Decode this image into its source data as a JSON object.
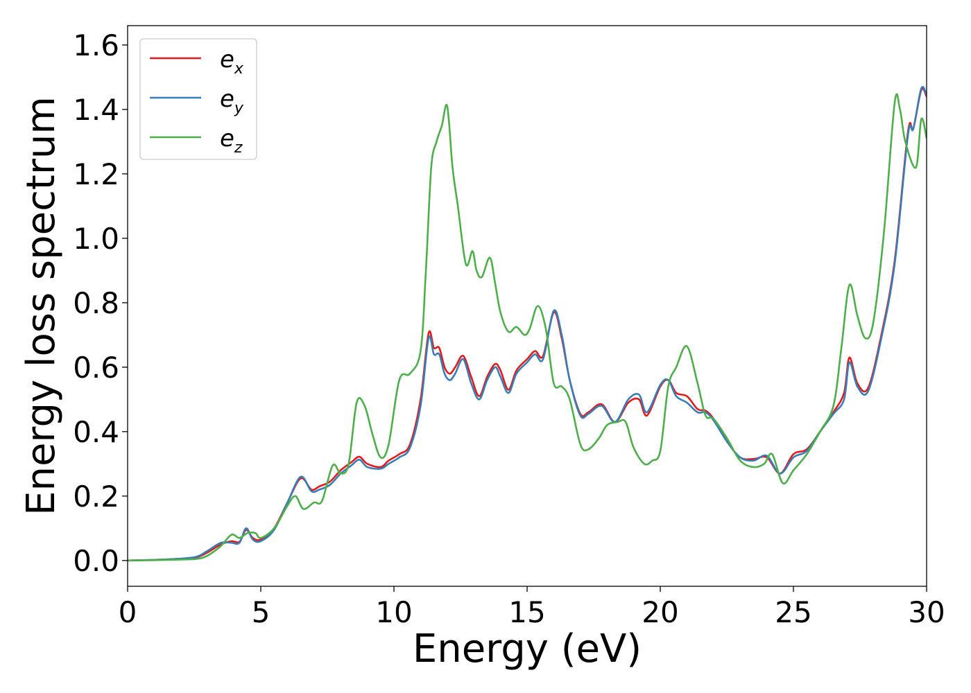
{
  "chart_data": {
    "type": "line",
    "xlabel": "Energy (eV)",
    "ylabel": "Energy loss spectrum",
    "xlim": [
      0,
      30
    ],
    "ylim": [
      -0.08,
      1.66
    ],
    "xticks": [
      0,
      5,
      10,
      15,
      20,
      25,
      30
    ],
    "xtick_labels": [
      "0",
      "5",
      "10",
      "15",
      "20",
      "25",
      "30"
    ],
    "yticks": [
      0.0,
      0.2,
      0.4,
      0.6,
      0.8,
      1.0,
      1.2,
      1.4,
      1.6
    ],
    "ytick_labels": [
      "0.0",
      "0.2",
      "0.4",
      "0.6",
      "0.8",
      "1.0",
      "1.2",
      "1.4",
      "1.6"
    ],
    "grid": false,
    "legend_position": "upper-left",
    "series": [
      {
        "name": "e_x",
        "name_base": "e",
        "name_sub": "x",
        "color": "#e41a1c",
        "x": [
          0,
          1,
          2,
          2.6,
          3,
          3.5,
          3.9,
          4.2,
          4.45,
          4.7,
          5.0,
          5.5,
          6.0,
          6.5,
          6.9,
          7.2,
          7.6,
          8.0,
          8.4,
          8.7,
          9.0,
          9.5,
          9.8,
          10.2,
          10.6,
          11.0,
          11.3,
          11.5,
          11.7,
          11.9,
          12.1,
          12.3,
          12.6,
          12.9,
          13.2,
          13.5,
          13.8,
          14.0,
          14.3,
          14.6,
          15.0,
          15.3,
          15.6,
          16.0,
          16.3,
          16.6,
          17.0,
          17.3,
          17.8,
          18.3,
          18.8,
          19.2,
          19.5,
          20.0,
          20.3,
          20.6,
          21.0,
          21.4,
          21.7,
          22.0,
          22.5,
          23.0,
          23.5,
          24.0,
          24.5,
          25.0,
          25.5,
          26.0,
          26.5,
          26.9,
          27.1,
          27.4,
          27.8,
          28.3,
          28.8,
          29.3,
          29.5,
          29.8,
          30.0
        ],
        "y": [
          0,
          0.002,
          0.005,
          0.01,
          0.025,
          0.05,
          0.06,
          0.058,
          0.095,
          0.07,
          0.065,
          0.1,
          0.18,
          0.255,
          0.22,
          0.23,
          0.245,
          0.28,
          0.305,
          0.322,
          0.3,
          0.29,
          0.31,
          0.33,
          0.36,
          0.5,
          0.705,
          0.66,
          0.66,
          0.6,
          0.58,
          0.6,
          0.635,
          0.57,
          0.51,
          0.57,
          0.61,
          0.59,
          0.53,
          0.59,
          0.625,
          0.65,
          0.635,
          0.77,
          0.69,
          0.56,
          0.455,
          0.46,
          0.485,
          0.43,
          0.49,
          0.5,
          0.45,
          0.54,
          0.56,
          0.52,
          0.51,
          0.47,
          0.465,
          0.44,
          0.37,
          0.32,
          0.315,
          0.32,
          0.27,
          0.33,
          0.345,
          0.4,
          0.46,
          0.52,
          0.63,
          0.55,
          0.535,
          0.7,
          0.93,
          1.33,
          1.34,
          1.46,
          1.44
        ]
      },
      {
        "name": "e_y",
        "name_base": "e",
        "name_sub": "y",
        "color": "#377eb8",
        "x": [
          0,
          1,
          2,
          2.6,
          3,
          3.5,
          3.9,
          4.2,
          4.45,
          4.7,
          5.0,
          5.5,
          6.0,
          6.5,
          6.9,
          7.2,
          7.6,
          8.0,
          8.4,
          8.7,
          9.0,
          9.5,
          9.8,
          10.2,
          10.6,
          11.0,
          11.3,
          11.5,
          11.7,
          11.9,
          12.1,
          12.3,
          12.6,
          12.9,
          13.2,
          13.5,
          13.8,
          14.0,
          14.3,
          14.6,
          15.0,
          15.3,
          15.6,
          16.0,
          16.3,
          16.6,
          17.0,
          17.3,
          17.8,
          18.3,
          18.8,
          19.2,
          19.5,
          20.0,
          20.3,
          20.6,
          21.0,
          21.4,
          21.7,
          22.0,
          22.5,
          23.0,
          23.5,
          24.0,
          24.5,
          25.0,
          25.5,
          26.0,
          26.5,
          26.9,
          27.1,
          27.4,
          27.8,
          28.3,
          28.8,
          29.3,
          29.5,
          29.8,
          30.0
        ],
        "y": [
          0,
          0.002,
          0.006,
          0.012,
          0.03,
          0.055,
          0.055,
          0.055,
          0.1,
          0.065,
          0.06,
          0.095,
          0.18,
          0.26,
          0.215,
          0.22,
          0.235,
          0.27,
          0.295,
          0.313,
          0.29,
          0.285,
          0.3,
          0.32,
          0.35,
          0.48,
          0.69,
          0.64,
          0.64,
          0.58,
          0.56,
          0.58,
          0.625,
          0.55,
          0.5,
          0.56,
          0.6,
          0.57,
          0.52,
          0.58,
          0.615,
          0.64,
          0.625,
          0.775,
          0.7,
          0.56,
          0.45,
          0.455,
          0.48,
          0.43,
          0.5,
          0.515,
          0.46,
          0.545,
          0.56,
          0.51,
          0.49,
          0.46,
          0.46,
          0.435,
          0.37,
          0.32,
          0.31,
          0.325,
          0.27,
          0.32,
          0.34,
          0.4,
          0.455,
          0.5,
          0.615,
          0.54,
          0.525,
          0.69,
          0.92,
          1.32,
          1.34,
          1.465,
          1.445
        ]
      },
      {
        "name": "e_z",
        "name_base": "e",
        "name_sub": "z",
        "color": "#4daf4a",
        "x": [
          0,
          1,
          2,
          2.6,
          3,
          3.5,
          3.9,
          4.2,
          4.5,
          4.8,
          5.0,
          5.5,
          6.0,
          6.3,
          6.6,
          7.0,
          7.3,
          7.7,
          8.0,
          8.3,
          8.6,
          8.9,
          9.2,
          9.5,
          9.8,
          10.2,
          10.6,
          11.0,
          11.2,
          11.4,
          11.6,
          11.8,
          12.0,
          12.2,
          12.4,
          12.7,
          12.95,
          13.1,
          13.3,
          13.6,
          13.8,
          14.0,
          14.3,
          14.6,
          14.9,
          15.1,
          15.4,
          15.7,
          16.0,
          16.3,
          16.6,
          17.0,
          17.3,
          17.7,
          18.0,
          18.4,
          18.7,
          19.0,
          19.4,
          19.7,
          20.0,
          20.3,
          20.6,
          21.0,
          21.4,
          21.7,
          22.0,
          22.5,
          23.0,
          23.5,
          23.9,
          24.2,
          24.6,
          25.0,
          25.5,
          26.0,
          26.5,
          26.8,
          27.1,
          27.4,
          27.7,
          28.0,
          28.4,
          28.8,
          29.0,
          29.2,
          29.6,
          29.8,
          30.0
        ],
        "y": [
          0,
          0.001,
          0.003,
          0.005,
          0.015,
          0.045,
          0.08,
          0.07,
          0.085,
          0.085,
          0.07,
          0.1,
          0.17,
          0.2,
          0.16,
          0.18,
          0.185,
          0.295,
          0.27,
          0.3,
          0.49,
          0.48,
          0.39,
          0.32,
          0.36,
          0.56,
          0.58,
          0.65,
          0.9,
          1.22,
          1.3,
          1.35,
          1.41,
          1.22,
          1.1,
          0.92,
          0.96,
          0.9,
          0.88,
          0.94,
          0.86,
          0.77,
          0.71,
          0.725,
          0.7,
          0.72,
          0.79,
          0.72,
          0.55,
          0.54,
          0.5,
          0.36,
          0.345,
          0.38,
          0.42,
          0.43,
          0.43,
          0.35,
          0.3,
          0.31,
          0.34,
          0.54,
          0.6,
          0.665,
          0.55,
          0.45,
          0.44,
          0.38,
          0.31,
          0.29,
          0.3,
          0.33,
          0.24,
          0.28,
          0.33,
          0.4,
          0.48,
          0.66,
          0.855,
          0.76,
          0.69,
          0.74,
          1.02,
          1.42,
          1.4,
          1.3,
          1.22,
          1.37,
          1.31
        ]
      }
    ]
  }
}
